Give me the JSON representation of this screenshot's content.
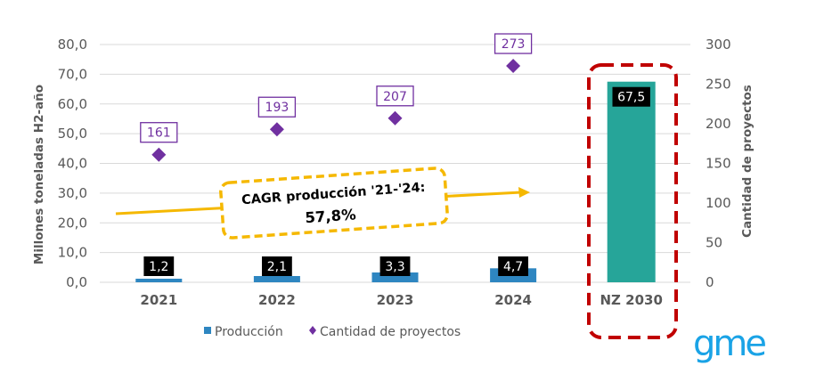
{
  "chart_data": {
    "type": "bar+scatter",
    "categories": [
      "2021",
      "2022",
      "2023",
      "2024",
      "NZ 2030"
    ],
    "series": [
      {
        "name": "Producción",
        "type": "bar",
        "axis": "left",
        "values": [
          1.2,
          2.1,
          3.3,
          4.7,
          67.5
        ],
        "labels": [
          "1,2",
          "2,1",
          "3,3",
          "4,7",
          "67,5"
        ],
        "colors": [
          "#2e86c1",
          "#2e86c1",
          "#2e86c1",
          "#2e86c1",
          "#26a599"
        ]
      },
      {
        "name": "Cantidad de proyectos",
        "type": "scatter",
        "axis": "right",
        "marker": "diamond",
        "color": "#7030a0",
        "values": [
          161,
          193,
          207,
          273,
          null
        ],
        "labels": [
          "161",
          "193",
          "207",
          "273",
          ""
        ]
      }
    ],
    "ylabel": "Millones toneladas H2-año",
    "y2label": "Cantidad de proyectos",
    "ylim": [
      0,
      80
    ],
    "y2lim": [
      0,
      300
    ],
    "yticks": [
      "0,0",
      "10,0",
      "20,0",
      "30,0",
      "40,0",
      "50,0",
      "60,0",
      "70,0",
      "80,0"
    ],
    "y2ticks": [
      "0",
      "50",
      "100",
      "150",
      "200",
      "250",
      "300"
    ],
    "grid": true,
    "legend": [
      "Producción",
      "Cantidad de proyectos"
    ],
    "legend_position": "bottom",
    "annotation": {
      "line1": "CAGR producción '21-'24:",
      "line2": "57,8%"
    },
    "highlight_category": "NZ 2030",
    "colors": {
      "bar": "#2e86c1",
      "bar_highlight": "#26a599",
      "marker": "#7030a0",
      "arrow": "#f5b800",
      "dashed_box": "#c00000",
      "grid": "#d9d9d9",
      "text": "#595959"
    }
  },
  "logo": {
    "text": "gme"
  }
}
